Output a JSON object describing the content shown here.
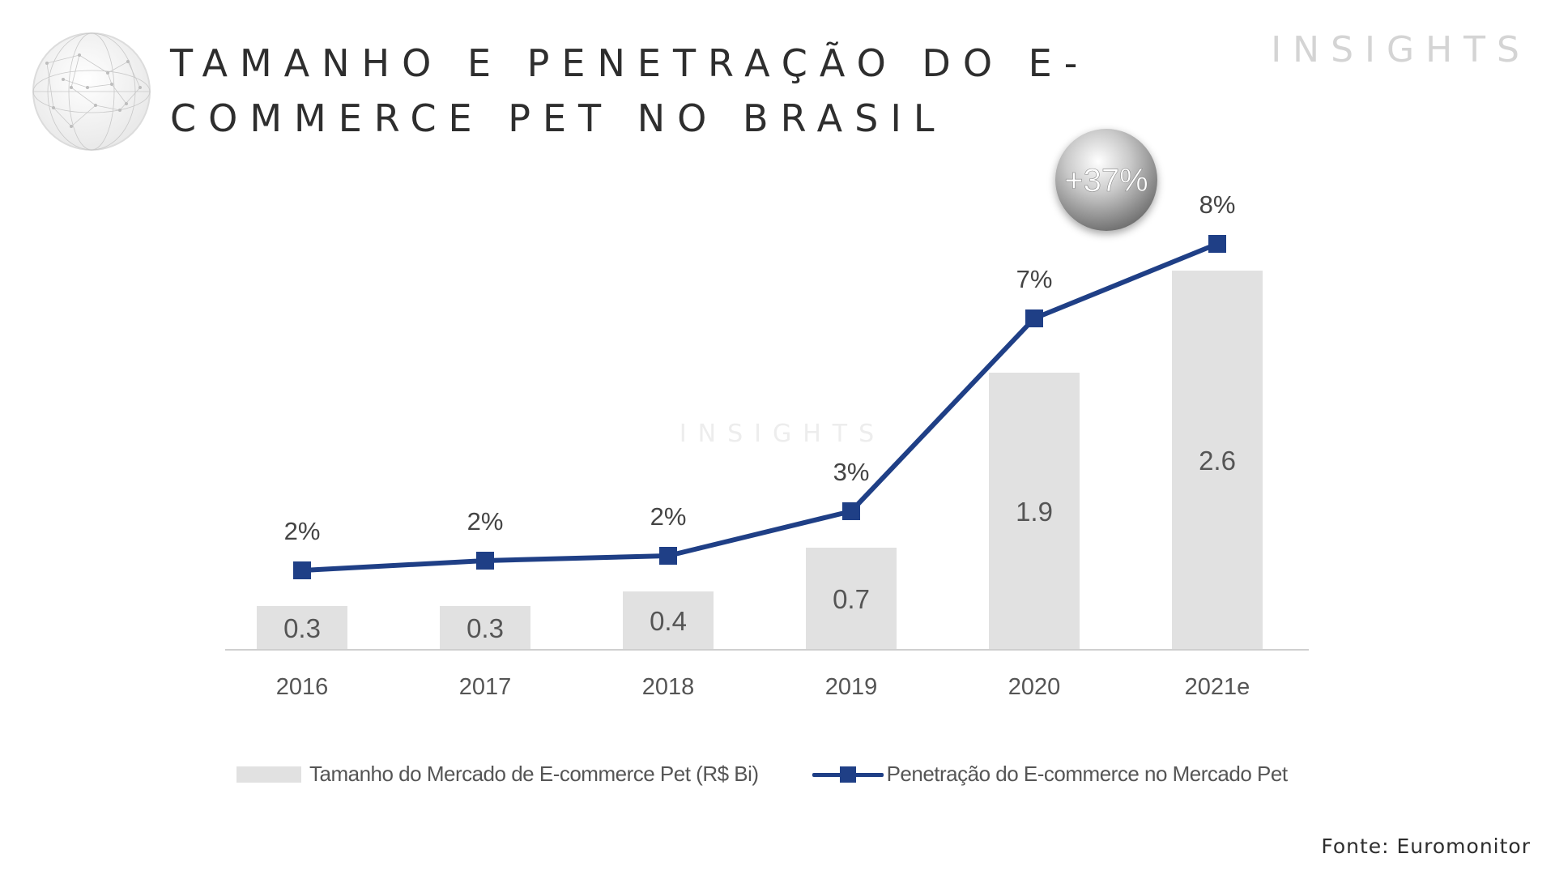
{
  "header": {
    "title": "TAMANHO E PENETRAÇÃO DO E-COMMERCE PET NO BRASIL",
    "brand": "INSIGHTS",
    "globe_icon": "globe-network-icon"
  },
  "badge": {
    "text": "+37%"
  },
  "watermark": "INSIGHTS",
  "chart_data": {
    "type": "bar",
    "title": "",
    "xlabel": "",
    "ylabel": "",
    "categories": [
      "2016",
      "2017",
      "2018",
      "2019",
      "2020",
      "2021e"
    ],
    "series": [
      {
        "name": "Tamanho do Mercado de E-commerce Pet (R$ Bi)",
        "type": "bar",
        "values": [
          0.3,
          0.3,
          0.4,
          0.7,
          1.9,
          2.6
        ],
        "labels": [
          "0.3",
          "0.3",
          "0.4",
          "0.7",
          "1.9",
          "2.6"
        ],
        "color": "#e1e1e1"
      },
      {
        "name": "Penetração do E-commerce no Mercado Pet",
        "type": "line",
        "values": [
          2,
          2,
          2,
          3,
          7,
          8
        ],
        "labels": [
          "2%",
          "2%",
          "2%",
          "3%",
          "7%",
          "8%"
        ],
        "color": "#1f3f86"
      }
    ],
    "grid": false,
    "legend_position": "bottom"
  },
  "footer": {
    "source": "Fonte: Euromonitor"
  },
  "colors": {
    "bar": "#e1e1e1",
    "line": "#1f3f86",
    "text": "#3b3b3b",
    "brand": "#d4d4d4"
  }
}
